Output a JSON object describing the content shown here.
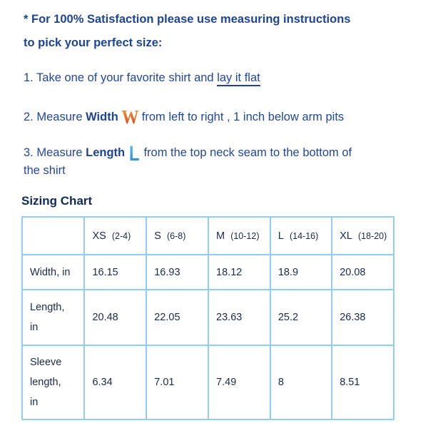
{
  "intro": {
    "line1": "* For 100% Satisfaction please use measuring instructions",
    "line2": "to pick your perfect size:"
  },
  "steps": [
    {
      "prefix": "1. Take one of your favorite shirt and ",
      "link": "lay it flat"
    },
    {
      "prefix": "2. Measure ",
      "bold": "Width",
      "icon_letter": "W",
      "icon": "orange-w-letter-icon",
      "suffix": "from left to right , 1 inch below arm pits"
    },
    {
      "prefix": "3. Measure ",
      "bold": "Length",
      "icon_letter": "L",
      "icon": "blue-l-letter-icon",
      "suffix": "from the top neck seam to the bottom of",
      "suffix2": "the shirt"
    }
  ],
  "chart_title": "Sizing Chart",
  "chart_data": {
    "type": "table",
    "columns": [
      {
        "size": "XS",
        "range": "(2-4)"
      },
      {
        "size": "S",
        "range": "(6-8)"
      },
      {
        "size": "M",
        "range": "(10-12)"
      },
      {
        "size": "L",
        "range": "(14-16)"
      },
      {
        "size": "XL",
        "range": "(18-20)"
      }
    ],
    "rows": [
      {
        "label_lines": [
          "Width, in"
        ],
        "values": [
          "16.15",
          "16.93",
          "18.12",
          "18.9",
          "20.08"
        ]
      },
      {
        "label_lines": [
          "Length,",
          "in"
        ],
        "values": [
          "20.48",
          "22.05",
          "23.63",
          "25.2",
          "26.38"
        ]
      },
      {
        "label_lines": [
          "Sleeve",
          "length,",
          "in"
        ],
        "values": [
          "6.34",
          "7.01",
          "7.49",
          "8",
          "8.51"
        ]
      }
    ]
  },
  "colors": {
    "text": "#23479a",
    "border": "#8fcdf3",
    "w_icon": "#e0561b",
    "l_icon": "#2a8ad6"
  }
}
